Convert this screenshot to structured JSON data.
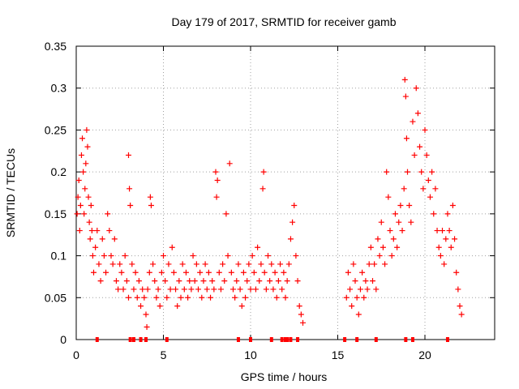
{
  "chart_data": {
    "type": "scatter",
    "title": "Day 179 of 2017, SRMTID for receiver gamb",
    "xlabel": "GPS time / hours",
    "ylabel": "SRMTID / TECUs",
    "xlim": [
      0,
      24
    ],
    "ylim": [
      0,
      0.35
    ],
    "x_ticks": [
      0,
      5,
      10,
      15,
      20
    ],
    "x_tick_labels": [
      "0",
      "5",
      "10",
      "15",
      "20"
    ],
    "y_ticks": [
      0,
      0.05,
      0.1,
      0.15,
      0.2,
      0.25,
      0.3,
      0.35
    ],
    "y_tick_labels": [
      "0",
      "0.05",
      "0.1",
      "0.15",
      "0.2",
      "0.25",
      "0.3",
      "0.35"
    ],
    "grid": true,
    "marker": "+",
    "series_color": "#ff0000",
    "series": [
      {
        "name": "SRMTID",
        "points": [
          [
            0.05,
            0.15
          ],
          [
            0.1,
            0.17
          ],
          [
            0.15,
            0.19
          ],
          [
            0.2,
            0.13
          ],
          [
            0.25,
            0.16
          ],
          [
            0.3,
            0.22
          ],
          [
            0.35,
            0.24
          ],
          [
            0.4,
            0.2
          ],
          [
            0.45,
            0.15
          ],
          [
            0.5,
            0.18
          ],
          [
            0.55,
            0.21
          ],
          [
            0.6,
            0.25
          ],
          [
            0.65,
            0.23
          ],
          [
            0.7,
            0.17
          ],
          [
            0.75,
            0.14
          ],
          [
            0.8,
            0.12
          ],
          [
            0.85,
            0.16
          ],
          [
            0.9,
            0.13
          ],
          [
            0.95,
            0.1
          ],
          [
            1.0,
            0.08
          ],
          [
            1.1,
            0.11
          ],
          [
            1.2,
            0.13
          ],
          [
            1.3,
            0.09
          ],
          [
            1.4,
            0.07
          ],
          [
            1.5,
            0.12
          ],
          [
            1.6,
            0.1
          ],
          [
            1.7,
            0.08
          ],
          [
            1.8,
            0.15
          ],
          [
            1.9,
            0.13
          ],
          [
            2.0,
            0.1
          ],
          [
            2.1,
            0.09
          ],
          [
            2.2,
            0.12
          ],
          [
            2.3,
            0.07
          ],
          [
            2.4,
            0.06
          ],
          [
            2.5,
            0.09
          ],
          [
            2.6,
            0.08
          ],
          [
            2.7,
            0.06
          ],
          [
            2.8,
            0.1
          ],
          [
            2.9,
            0.07
          ],
          [
            3.0,
            0.05
          ],
          [
            3.0,
            0.22
          ],
          [
            3.05,
            0.18
          ],
          [
            3.1,
            0.16
          ],
          [
            3.2,
            0.09
          ],
          [
            3.3,
            0.06
          ],
          [
            3.4,
            0.08
          ],
          [
            3.5,
            0.05
          ],
          [
            3.6,
            0.07
          ],
          [
            3.7,
            0.04
          ],
          [
            3.8,
            0.06
          ],
          [
            3.9,
            0.05
          ],
          [
            4.0,
            0.03
          ],
          [
            4.05,
            0.015
          ],
          [
            4.1,
            0.06
          ],
          [
            4.2,
            0.08
          ],
          [
            4.25,
            0.17
          ],
          [
            4.3,
            0.16
          ],
          [
            4.4,
            0.09
          ],
          [
            4.5,
            0.07
          ],
          [
            4.6,
            0.05
          ],
          [
            4.7,
            0.06
          ],
          [
            4.8,
            0.04
          ],
          [
            4.9,
            0.08
          ],
          [
            5.0,
            0.1
          ],
          [
            5.1,
            0.07
          ],
          [
            5.2,
            0.05
          ],
          [
            5.3,
            0.09
          ],
          [
            5.4,
            0.06
          ],
          [
            5.5,
            0.11
          ],
          [
            5.6,
            0.08
          ],
          [
            5.7,
            0.06
          ],
          [
            5.8,
            0.04
          ],
          [
            5.9,
            0.07
          ],
          [
            6.0,
            0.05
          ],
          [
            6.1,
            0.09
          ],
          [
            6.2,
            0.06
          ],
          [
            6.3,
            0.08
          ],
          [
            6.4,
            0.05
          ],
          [
            6.5,
            0.07
          ],
          [
            6.6,
            0.06
          ],
          [
            6.7,
            0.1
          ],
          [
            6.8,
            0.07
          ],
          [
            6.9,
            0.09
          ],
          [
            7.0,
            0.06
          ],
          [
            7.1,
            0.08
          ],
          [
            7.2,
            0.05
          ],
          [
            7.3,
            0.07
          ],
          [
            7.4,
            0.09
          ],
          [
            7.5,
            0.06
          ],
          [
            7.6,
            0.08
          ],
          [
            7.7,
            0.05
          ],
          [
            7.8,
            0.07
          ],
          [
            7.9,
            0.06
          ],
          [
            8.0,
            0.2
          ],
          [
            8.05,
            0.17
          ],
          [
            8.1,
            0.19
          ],
          [
            8.2,
            0.08
          ],
          [
            8.3,
            0.06
          ],
          [
            8.4,
            0.09
          ],
          [
            8.5,
            0.07
          ],
          [
            8.6,
            0.15
          ],
          [
            8.7,
            0.1
          ],
          [
            8.8,
            0.21
          ],
          [
            8.9,
            0.08
          ],
          [
            9.0,
            0.06
          ],
          [
            9.1,
            0.05
          ],
          [
            9.2,
            0.07
          ],
          [
            9.3,
            0.09
          ],
          [
            9.4,
            0.06
          ],
          [
            9.5,
            0.04
          ],
          [
            9.6,
            0.08
          ],
          [
            9.7,
            0.05
          ],
          [
            9.8,
            0.07
          ],
          [
            9.9,
            0.09
          ],
          [
            10.0,
            0.06
          ],
          [
            10.1,
            0.1
          ],
          [
            10.2,
            0.08
          ],
          [
            10.3,
            0.06
          ],
          [
            10.4,
            0.11
          ],
          [
            10.5,
            0.07
          ],
          [
            10.6,
            0.09
          ],
          [
            10.7,
            0.18
          ],
          [
            10.75,
            0.2
          ],
          [
            10.8,
            0.08
          ],
          [
            10.9,
            0.06
          ],
          [
            11.0,
            0.1
          ],
          [
            11.1,
            0.07
          ],
          [
            11.2,
            0.09
          ],
          [
            11.3,
            0.06
          ],
          [
            11.4,
            0.08
          ],
          [
            11.5,
            0.05
          ],
          [
            11.6,
            0.07
          ],
          [
            11.7,
            0.09
          ],
          [
            11.8,
            0.06
          ],
          [
            11.9,
            0.08
          ],
          [
            12.0,
            0.05
          ],
          [
            12.1,
            0.07
          ],
          [
            12.2,
            0.09
          ],
          [
            12.3,
            0.12
          ],
          [
            12.4,
            0.14
          ],
          [
            12.5,
            0.16
          ],
          [
            12.6,
            0.1
          ],
          [
            12.7,
            0.07
          ],
          [
            12.8,
            0.04
          ],
          [
            12.9,
            0.03
          ],
          [
            13.0,
            0.02
          ],
          [
            15.5,
            0.05
          ],
          [
            15.6,
            0.08
          ],
          [
            15.7,
            0.06
          ],
          [
            15.8,
            0.04
          ],
          [
            15.9,
            0.09
          ],
          [
            16.0,
            0.07
          ],
          [
            16.1,
            0.05
          ],
          [
            16.2,
            0.03
          ],
          [
            16.3,
            0.06
          ],
          [
            16.4,
            0.08
          ],
          [
            16.5,
            0.05
          ],
          [
            16.6,
            0.07
          ],
          [
            16.7,
            0.06
          ],
          [
            16.8,
            0.09
          ],
          [
            16.9,
            0.11
          ],
          [
            17.0,
            0.07
          ],
          [
            17.1,
            0.09
          ],
          [
            17.2,
            0.06
          ],
          [
            17.3,
            0.12
          ],
          [
            17.4,
            0.1
          ],
          [
            17.5,
            0.14
          ],
          [
            17.6,
            0.11
          ],
          [
            17.7,
            0.09
          ],
          [
            17.8,
            0.2
          ],
          [
            17.9,
            0.17
          ],
          [
            18.0,
            0.13
          ],
          [
            18.1,
            0.1
          ],
          [
            18.2,
            0.12
          ],
          [
            18.3,
            0.15
          ],
          [
            18.4,
            0.11
          ],
          [
            18.5,
            0.14
          ],
          [
            18.6,
            0.16
          ],
          [
            18.7,
            0.13
          ],
          [
            18.8,
            0.18
          ],
          [
            18.85,
            0.31
          ],
          [
            18.9,
            0.29
          ],
          [
            18.95,
            0.24
          ],
          [
            19.0,
            0.2
          ],
          [
            19.1,
            0.16
          ],
          [
            19.2,
            0.14
          ],
          [
            19.3,
            0.26
          ],
          [
            19.4,
            0.22
          ],
          [
            19.5,
            0.3
          ],
          [
            19.6,
            0.27
          ],
          [
            19.7,
            0.23
          ],
          [
            19.8,
            0.2
          ],
          [
            19.9,
            0.18
          ],
          [
            20.0,
            0.25
          ],
          [
            20.1,
            0.22
          ],
          [
            20.2,
            0.19
          ],
          [
            20.3,
            0.17
          ],
          [
            20.4,
            0.2
          ],
          [
            20.5,
            0.15
          ],
          [
            20.6,
            0.18
          ],
          [
            20.7,
            0.13
          ],
          [
            20.8,
            0.11
          ],
          [
            20.9,
            0.1
          ],
          [
            21.0,
            0.13
          ],
          [
            21.1,
            0.09
          ],
          [
            21.2,
            0.12
          ],
          [
            21.3,
            0.15
          ],
          [
            21.4,
            0.13
          ],
          [
            21.5,
            0.11
          ],
          [
            21.6,
            0.16
          ],
          [
            21.7,
            0.12
          ],
          [
            21.8,
            0.08
          ],
          [
            21.9,
            0.06
          ],
          [
            22.0,
            0.04
          ],
          [
            22.1,
            0.03
          ]
        ]
      }
    ],
    "baseline_markers_x": [
      1.2,
      3.1,
      3.3,
      3.7,
      4.0,
      5.2,
      9.3,
      10.0,
      11.2,
      11.8,
      12.0,
      12.1,
      12.3,
      12.7,
      15.4,
      16.1,
      17.2,
      18.9,
      19.3,
      21.3
    ]
  }
}
